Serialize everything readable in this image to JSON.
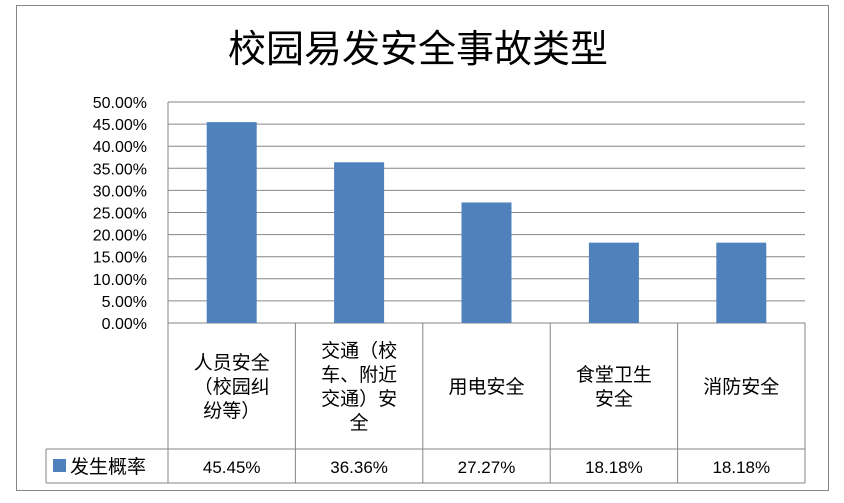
{
  "chart_data": {
    "type": "bar",
    "title": "校园易发安全事故类型",
    "categories": [
      [
        "人员安全",
        "（校园纠",
        "纷等）"
      ],
      [
        "交通（校",
        "车、附近",
        "交通）安",
        "全"
      ],
      [
        "用电安全"
      ],
      [
        "食堂卫生",
        "安全"
      ],
      [
        "消防安全"
      ]
    ],
    "series": [
      {
        "name": "发生概率",
        "values": [
          45.45,
          36.36,
          27.27,
          18.18,
          18.18
        ],
        "labels": [
          "45.45%",
          "36.36%",
          "27.27%",
          "18.18%",
          "18.18%"
        ]
      }
    ],
    "yticks": [
      "0.00%",
      "5.00%",
      "10.00%",
      "15.00%",
      "20.00%",
      "25.00%",
      "30.00%",
      "35.00%",
      "40.00%",
      "45.00%",
      "50.00%"
    ],
    "ylim": [
      0,
      50
    ],
    "grid": true,
    "legend": "data-table",
    "colors": {
      "bar": "#4F81BD",
      "grid": "#868686",
      "frame": "#868686"
    }
  }
}
